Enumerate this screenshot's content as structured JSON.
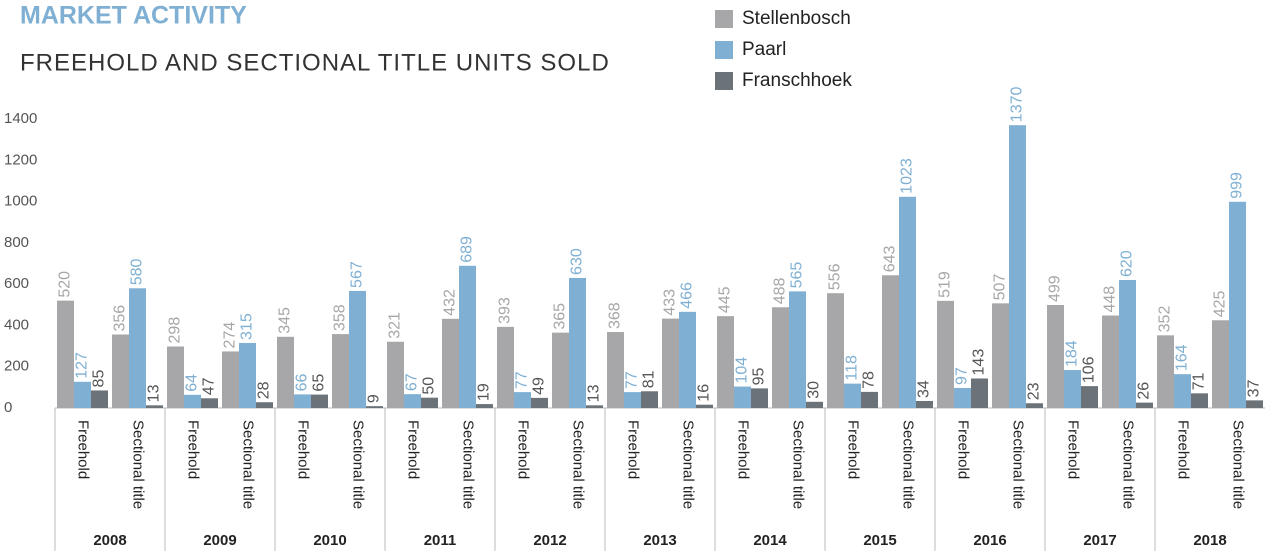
{
  "chart_data": {
    "type": "bar",
    "title": "MARKET ACTIVITY",
    "subtitle": "FREEHOLD AND SECTIONAL TITLE UNITS SOLD",
    "groups": [
      "2008",
      "2009",
      "2010",
      "2011",
      "2012",
      "2013",
      "2014",
      "2015",
      "2016",
      "2017",
      "2018"
    ],
    "categories": [
      "Freehold",
      "Sectional title",
      "Freehold",
      "Sectional title",
      "Freehold",
      "Sectional title",
      "Freehold",
      "Sectional title",
      "Freehold",
      "Sectional title",
      "Freehold",
      "Sectional title",
      "Freehold",
      "Sectional title",
      "Freehold",
      "Sectional title",
      "Freehold",
      "Sectional title",
      "Freehold",
      "Sectional title",
      "Freehold",
      "Sectional title"
    ],
    "series": [
      {
        "name": "Stellenbosch",
        "color": "#a7a7a9",
        "values": [
          520,
          356,
          298,
          274,
          345,
          358,
          321,
          432,
          393,
          365,
          368,
          433,
          445,
          488,
          556,
          643,
          519,
          507,
          499,
          448,
          352,
          425
        ]
      },
      {
        "name": "Paarl",
        "color": "#7fb0d3",
        "values": [
          127,
          580,
          64,
          315,
          66,
          567,
          67,
          689,
          77,
          630,
          77,
          466,
          104,
          565,
          118,
          1023,
          97,
          1370,
          184,
          620,
          164,
          999
        ]
      },
      {
        "name": "Franschhoek",
        "color": "#6b7379",
        "values": [
          85,
          13,
          47,
          28,
          65,
          9,
          50,
          19,
          49,
          13,
          81,
          16,
          95,
          30,
          78,
          34,
          143,
          23,
          106,
          26,
          71,
          37
        ]
      }
    ],
    "ylim": [
      0,
      1400
    ],
    "yticks": [
      0,
      200,
      400,
      600,
      800,
      1000,
      1200,
      1400
    ],
    "legend": "top-right"
  }
}
